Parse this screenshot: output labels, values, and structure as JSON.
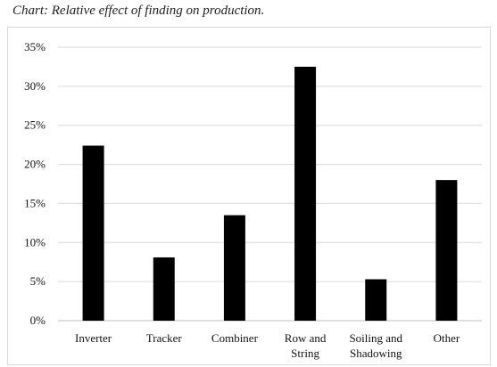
{
  "chart_data": {
    "type": "bar",
    "title": "Chart: Relative effect of finding on production.",
    "categories": [
      "Inverter",
      "Tracker",
      "Combiner",
      "Row and String",
      "Soiling and Shadowing",
      "Other"
    ],
    "category_lines": [
      [
        "Inverter"
      ],
      [
        "Tracker"
      ],
      [
        "Combiner"
      ],
      [
        "Row and",
        "String"
      ],
      [
        "Soiling and",
        "Shadowing"
      ],
      [
        "Other"
      ]
    ],
    "values": [
      22.4,
      8.1,
      13.5,
      32.5,
      5.3,
      18.0
    ],
    "ylim": [
      0,
      35
    ],
    "yticks": [
      "0%",
      "5%",
      "10%",
      "15%",
      "20%",
      "25%",
      "30%",
      "35%"
    ],
    "ytick_values": [
      0,
      5,
      10,
      15,
      20,
      25,
      30,
      35
    ],
    "grid": true,
    "bar_color": "#000000",
    "grid_color": "#d9d9d9"
  }
}
